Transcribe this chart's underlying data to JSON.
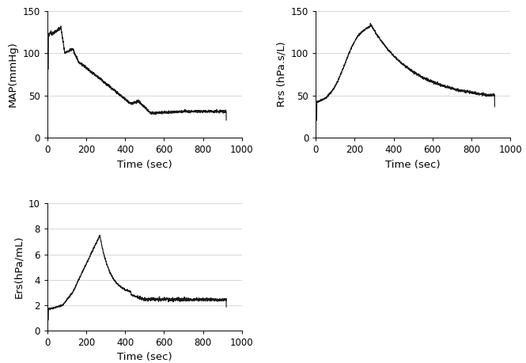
{
  "map_ylabel": "MAP(mmHg)",
  "rrs_ylabel": "Rrs (hPa.s/L)",
  "ers_ylabel": "Ers(hPa/mL)",
  "xlabel": "Time (sec)",
  "map_ylim": [
    0,
    150
  ],
  "rrs_ylim": [
    0,
    150
  ],
  "ers_ylim": [
    0,
    10
  ],
  "map_yticks": [
    0,
    50,
    100,
    150
  ],
  "rrs_yticks": [
    0,
    50,
    100,
    150
  ],
  "ers_yticks": [
    0,
    2,
    4,
    6,
    8,
    10
  ],
  "xlim": [
    0,
    1000
  ],
  "xticks": [
    0,
    200,
    400,
    600,
    800,
    1000
  ],
  "line_color": "#1a1a1a",
  "bg_color": "#ffffff",
  "grid_color": "#c8c8c8",
  "tick_label_fontsize": 8.5,
  "axis_label_fontsize": 9.5
}
